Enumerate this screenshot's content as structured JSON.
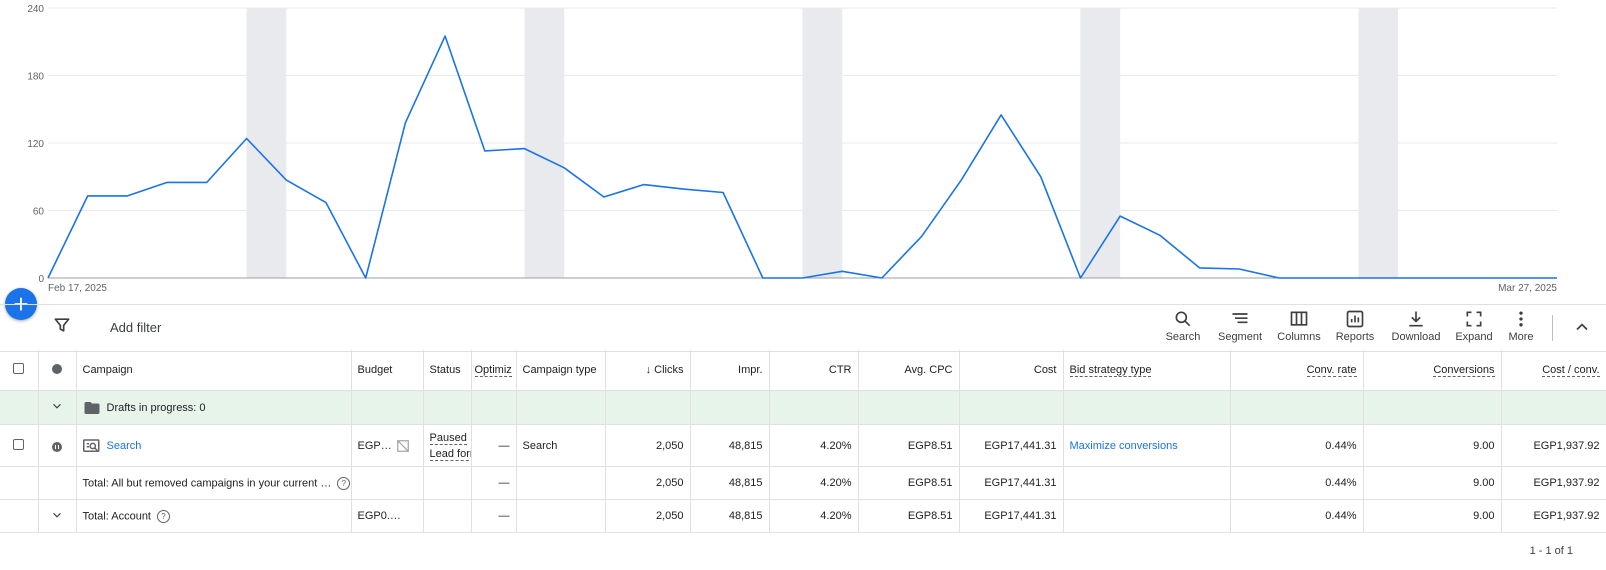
{
  "chart_data": {
    "type": "line",
    "x_start_label": "Feb 17, 2025",
    "x_end_label": "Mar 27, 2025",
    "yticks": [
      "240",
      "180",
      "120",
      "60",
      "0"
    ],
    "ylim": [
      0,
      240
    ],
    "grid": true,
    "color": "#1a73e8",
    "weekend_shading": true,
    "values": [
      0,
      73,
      73,
      85,
      85,
      124,
      87,
      67,
      0,
      138,
      215,
      113,
      115,
      98,
      72,
      83,
      79,
      76,
      0,
      0,
      6,
      0,
      37,
      87,
      145,
      90,
      0,
      55,
      38,
      9,
      8,
      0,
      0,
      0,
      0,
      0,
      0,
      0,
      0
    ]
  },
  "fab": {
    "label": "+"
  },
  "toolbar": {
    "add_filter": "Add filter",
    "buttons": [
      "Search",
      "Segment",
      "Columns",
      "Reports",
      "Download",
      "Expand",
      "More"
    ]
  },
  "table": {
    "headers": {
      "campaign": "Campaign",
      "budget": "Budget",
      "status": "Status",
      "optimization": "Optimiz",
      "campaign_type": "Campaign type",
      "clicks": "Clicks",
      "impr": "Impr.",
      "ctr": "CTR",
      "avg_cpc": "Avg. CPC",
      "cost": "Cost",
      "bid_strategy": "Bid strategy type",
      "conv_rate": "Conv. rate",
      "conversions": "Conversions",
      "cost_conv": "Cost / conv."
    },
    "drafts": {
      "label": "Drafts in progress: 0"
    },
    "row": {
      "campaign": "Search",
      "budget": "EGP…",
      "status_line1": "Paused",
      "status_line2": "Lead form",
      "optimization": "—",
      "campaign_type": "Search",
      "clicks": "2,050",
      "impr": "48,815",
      "ctr": "4.20%",
      "avg_cpc": "EGP8.51",
      "cost": "EGP17,441.31",
      "bid_strategy": "Maximize conversions",
      "conv_rate": "0.44%",
      "conversions": "9.00",
      "cost_conv": "EGP1,937.92"
    },
    "total_campaigns": {
      "label": "Total: All but removed campaigns in your current …",
      "optimization": "—",
      "clicks": "2,050",
      "impr": "48,815",
      "ctr": "4.20%",
      "avg_cpc": "EGP8.51",
      "cost": "EGP17,441.31",
      "conv_rate": "0.44%",
      "conversions": "9.00",
      "cost_conv": "EGP1,937.92"
    },
    "total_account": {
      "label": "Total: Account",
      "budget": "EGP0.…",
      "optimization": "—",
      "clicks": "2,050",
      "impr": "48,815",
      "ctr": "4.20%",
      "avg_cpc": "EGP8.51",
      "cost": "EGP17,441.31",
      "conv_rate": "0.44%",
      "conversions": "9.00",
      "cost_conv": "EGP1,937.92"
    }
  },
  "pagination": "1 - 1 of 1"
}
